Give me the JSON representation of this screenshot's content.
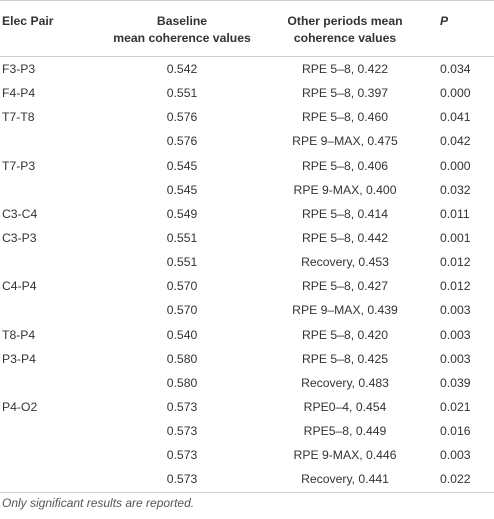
{
  "table": {
    "headers": {
      "elec_pair": "Elec Pair",
      "baseline_line1": "Baseline",
      "baseline_line2": "mean coherence values",
      "other_line1": "Other periods mean",
      "other_line2": "coherence values",
      "p": "P"
    },
    "rows": [
      {
        "pair": "F3-P3",
        "baseline": "0.542",
        "other": "RPE 5–8, 0.422",
        "p": "0.034"
      },
      {
        "pair": "F4-P4",
        "baseline": "0.551",
        "other": "RPE 5–8, 0.397",
        "p": "0.000"
      },
      {
        "pair": "T7-T8",
        "baseline": "0.576",
        "other": "RPE 5–8, 0.460",
        "p": "0.041"
      },
      {
        "pair": "",
        "baseline": "0.576",
        "other": "RPE 9–MAX, 0.475",
        "p": "0.042"
      },
      {
        "pair": "T7-P3",
        "baseline": "0.545",
        "other": "RPE 5–8, 0.406",
        "p": "0.000"
      },
      {
        "pair": "",
        "baseline": "0.545",
        "other": "RPE 9-MAX, 0.400",
        "p": "0.032"
      },
      {
        "pair": "C3-C4",
        "baseline": "0.549",
        "other": "RPE 5–8, 0.414",
        "p": "0.011"
      },
      {
        "pair": "C3-P3",
        "baseline": "0.551",
        "other": "RPE 5–8, 0.442",
        "p": "0.001"
      },
      {
        "pair": "",
        "baseline": "0.551",
        "other": "Recovery, 0.453",
        "p": "0.012"
      },
      {
        "pair": "C4-P4",
        "baseline": "0.570",
        "other": "RPE 5–8, 0.427",
        "p": "0.012"
      },
      {
        "pair": "",
        "baseline": "0.570",
        "other": "RPE 9–MAX, 0.439",
        "p": "0.003"
      },
      {
        "pair": "T8-P4",
        "baseline": "0.540",
        "other": "RPE 5–8, 0.420",
        "p": "0.003"
      },
      {
        "pair": "P3-P4",
        "baseline": "0.580",
        "other": "RPE 5–8, 0.425",
        "p": "0.003"
      },
      {
        "pair": "",
        "baseline": "0.580",
        "other": "Recovery, 0.483",
        "p": "0.039"
      },
      {
        "pair": "P4-O2",
        "baseline": "0.573",
        "other": "RPE0–4, 0.454",
        "p": "0.021"
      },
      {
        "pair": "",
        "baseline": "0.573",
        "other": "RPE5–8, 0.449",
        "p": "0.016"
      },
      {
        "pair": "",
        "baseline": "0.573",
        "other": "RPE 9-MAX, 0.446",
        "p": "0.003"
      },
      {
        "pair": "",
        "baseline": "0.573",
        "other": "Recovery, 0.441",
        "p": "0.022"
      }
    ]
  },
  "footnote": "Only significant results are reported."
}
